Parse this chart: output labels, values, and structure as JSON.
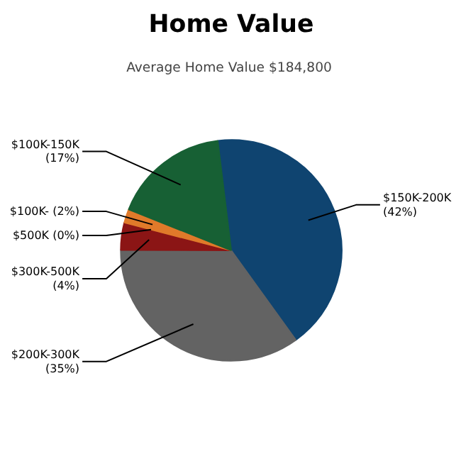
{
  "chart_data": {
    "type": "pie",
    "title": "Home Value",
    "subtitle": "Average Home Value  $184,800",
    "categories": [
      "$150K-200K",
      "$200K-300K",
      "$300K-500K",
      "$500K",
      "$100K-",
      "$100K-150K"
    ],
    "values": [
      42,
      35,
      4,
      0,
      2,
      17
    ],
    "value_labels": [
      "(42%)",
      "(35%)",
      "(4%)",
      "(0%)",
      "(2%)",
      "(17%)"
    ],
    "colors": [
      "#0f4470",
      "#636363",
      "#8b1515",
      "#5a1010",
      "#e07a2a",
      "#176034"
    ]
  }
}
